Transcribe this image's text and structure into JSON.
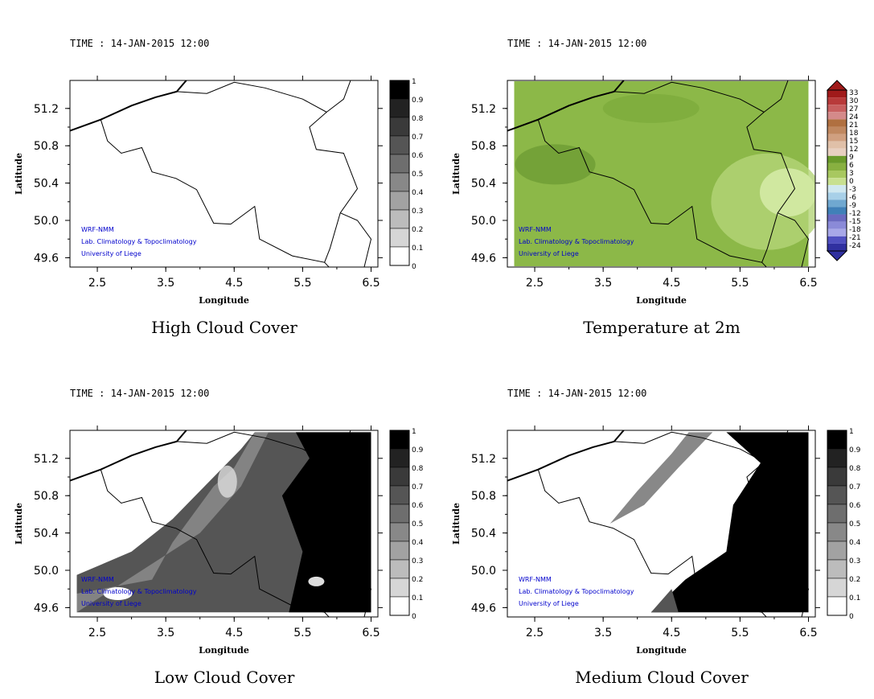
{
  "time_prefix": "TIME : ",
  "panels": [
    {
      "id": "high-cloud",
      "time_label": "TIME : 14-JAN-2015 12:00",
      "title": "High Cloud Cover",
      "kind": "cloud",
      "colorbar_labels": [
        "1",
        "0.9",
        "0.8",
        "0.7",
        "0.6",
        "0.5",
        "0.4",
        "0.3",
        "0.2",
        "0.1",
        "0"
      ],
      "colorbar_colors": [
        "#000000",
        "#222222",
        "#3a3a3a",
        "#555555",
        "#6e6e6e",
        "#888888",
        "#a2a2a2",
        "#bcbcbc",
        "#d6d6d6",
        "#ffffff"
      ]
    },
    {
      "id": "temperature",
      "time_label": "TIME : 14-JAN-2015 12:00",
      "title": "Temperature at 2m",
      "kind": "temperature",
      "colorbar_labels": [
        "33",
        "30",
        "27",
        "24",
        "21",
        "18",
        "15",
        "12",
        "9",
        "6",
        "3",
        "0",
        "-3",
        "-6",
        "-9",
        "-12",
        "-15",
        "-18",
        "-21",
        "-24"
      ],
      "colorbar_colors": [
        "#a01a1a",
        "#b83a3a",
        "#c86060",
        "#d48a8a",
        "#b07040",
        "#c08860",
        "#d0a080",
        "#e0c0a8",
        "#e8d0c0",
        "#6a9a2a",
        "#88b040",
        "#a8c860",
        "#c8e090",
        "#d0e8f0",
        "#a8d0e8",
        "#70a8d0",
        "#4080b8",
        "#6a6ac0",
        "#8a8ad8",
        "#a8a8e8",
        "#5050c0",
        "#3030a0"
      ]
    },
    {
      "id": "low-cloud",
      "time_label": "TIME : 14-JAN-2015 12:00",
      "title": "Low Cloud Cover",
      "kind": "cloud",
      "colorbar_labels": [
        "1",
        "0.9",
        "0.8",
        "0.7",
        "0.6",
        "0.5",
        "0.4",
        "0.3",
        "0.2",
        "0.1",
        "0"
      ],
      "colorbar_colors": [
        "#000000",
        "#222222",
        "#3a3a3a",
        "#555555",
        "#6e6e6e",
        "#888888",
        "#a2a2a2",
        "#bcbcbc",
        "#d6d6d6",
        "#ffffff"
      ]
    },
    {
      "id": "medium-cloud",
      "time_label": "TIME : 14-JAN-2015 12:00",
      "title": "Medium Cloud Cover",
      "kind": "cloud",
      "colorbar_labels": [
        "1",
        "0.9",
        "0.8",
        "0.7",
        "0.6",
        "0.5",
        "0.4",
        "0.3",
        "0.2",
        "0.1",
        "0"
      ],
      "colorbar_colors": [
        "#000000",
        "#222222",
        "#3a3a3a",
        "#555555",
        "#6e6e6e",
        "#888888",
        "#a2a2a2",
        "#bcbcbc",
        "#d6d6d6",
        "#ffffff"
      ]
    }
  ],
  "axes": {
    "xlabel": "Longitude",
    "ylabel": "Latitude",
    "xticks": [
      "2.5",
      "3.5",
      "4.5",
      "5.5",
      "6.5"
    ],
    "yticks": [
      "51.2",
      "50.8",
      "50.4",
      "50.0",
      "49.6"
    ]
  },
  "credits": [
    "WRF-NMM",
    "Lab. Climatology & Topoclimatology",
    "University of Liege"
  ],
  "colors": {
    "credit_text": "#0000cc",
    "border": "#000000",
    "temp_field": "#8cb848"
  },
  "chart_data": [
    {
      "type": "heatmap",
      "title": "High Cloud Cover",
      "xlabel": "Longitude",
      "ylabel": "Latitude",
      "xlim": [
        2.1,
        6.6
      ],
      "ylim": [
        49.5,
        51.5
      ],
      "legend": [
        "0",
        "0.1",
        "0.2",
        "0.3",
        "0.4",
        "0.5",
        "0.6",
        "0.7",
        "0.8",
        "0.9",
        "1"
      ]
    },
    {
      "type": "heatmap",
      "title": "Temperature at 2m",
      "xlabel": "Longitude",
      "ylabel": "Latitude",
      "xlim": [
        2.1,
        6.6
      ],
      "ylim": [
        49.5,
        51.5
      ],
      "legend": [
        "-24",
        "-21",
        "-18",
        "-15",
        "-12",
        "-9",
        "-6",
        "-3",
        "0",
        "3",
        "6",
        "9",
        "12",
        "15",
        "18",
        "21",
        "24",
        "27",
        "30",
        "33"
      ]
    },
    {
      "type": "heatmap",
      "title": "Low Cloud Cover",
      "xlabel": "Longitude",
      "ylabel": "Latitude",
      "xlim": [
        2.1,
        6.6
      ],
      "ylim": [
        49.5,
        51.5
      ],
      "legend": [
        "0",
        "0.1",
        "0.2",
        "0.3",
        "0.4",
        "0.5",
        "0.6",
        "0.7",
        "0.8",
        "0.9",
        "1"
      ]
    },
    {
      "type": "heatmap",
      "title": "Medium Cloud Cover",
      "xlabel": "Longitude",
      "ylabel": "Latitude",
      "xlim": [
        2.1,
        6.6
      ],
      "ylim": [
        49.5,
        51.5
      ],
      "legend": [
        "0",
        "0.1",
        "0.2",
        "0.3",
        "0.4",
        "0.5",
        "0.6",
        "0.7",
        "0.8",
        "0.9",
        "1"
      ]
    }
  ]
}
